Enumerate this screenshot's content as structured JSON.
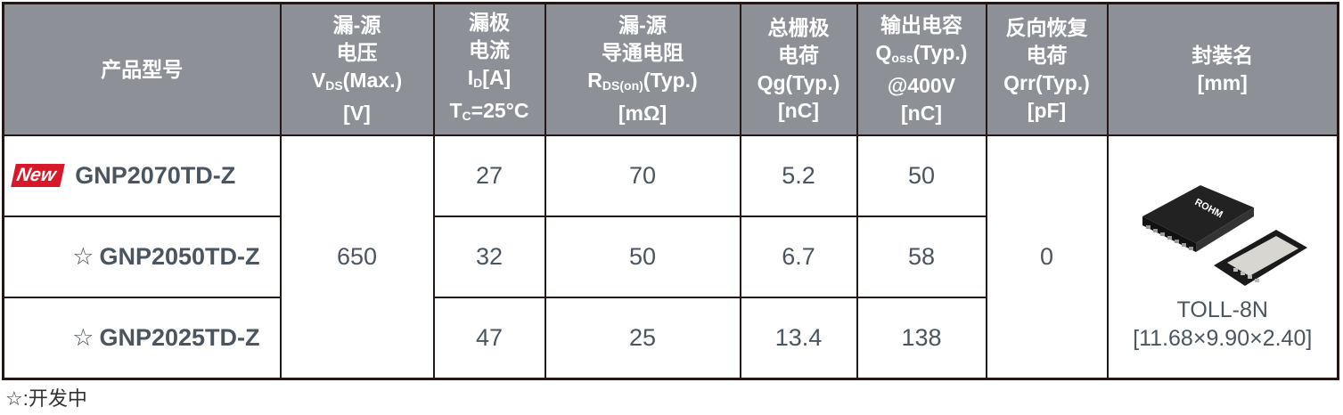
{
  "headers": {
    "model": "产品型号",
    "vds": {
      "l1": "漏-源",
      "l2": "电压",
      "sym": "V",
      "sub": "DS",
      "suffix": "(Max.)",
      "unit": "[V]"
    },
    "id": {
      "l1": "漏极",
      "l2": "电流",
      "sym": "I",
      "sub": "D",
      "suffix": "[A]",
      "cond_sym": "T",
      "cond_sub": "C",
      "cond_suffix": "=25°C"
    },
    "rds": {
      "l1": "漏-源",
      "l2": "导通电阻",
      "sym": "R",
      "sub": "DS(on)",
      "suffix": "(Typ.)",
      "unit": "[mΩ]"
    },
    "qg": {
      "l1": "总栅极",
      "l2": "电荷",
      "l3": "Qg(Typ.)",
      "unit": "[nC]"
    },
    "qoss": {
      "l1": "输出电容",
      "sym": "Q",
      "sub": "oss",
      "suffix": "(Typ.)",
      "l3": "@400V",
      "unit": "[nC]"
    },
    "qrr": {
      "l1": "反向恢复",
      "l2": "电荷",
      "l3": "Qrr(Typ.)",
      "unit": "[pF]"
    },
    "pkg": {
      "l1": "封装名",
      "unit": "[mm]"
    }
  },
  "new_badge": "New",
  "star": "☆",
  "rows": [
    {
      "model": "GNP2070TD-Z",
      "id": "27",
      "rds": "70",
      "qg": "5.2",
      "qoss": "50"
    },
    {
      "model": "GNP2050TD-Z",
      "id": "32",
      "rds": "50",
      "qg": "6.7",
      "qoss": "58"
    },
    {
      "model": "GNP2025TD-Z",
      "id": "47",
      "rds": "25",
      "qg": "13.4",
      "qoss": "138"
    }
  ],
  "vds_value": "650",
  "qrr_value": "0",
  "package": {
    "name": "TOLL-8N",
    "dims": "[11.68×9.90×2.40]",
    "logo_text": "ROHM"
  },
  "footnote": "☆:开发中"
}
